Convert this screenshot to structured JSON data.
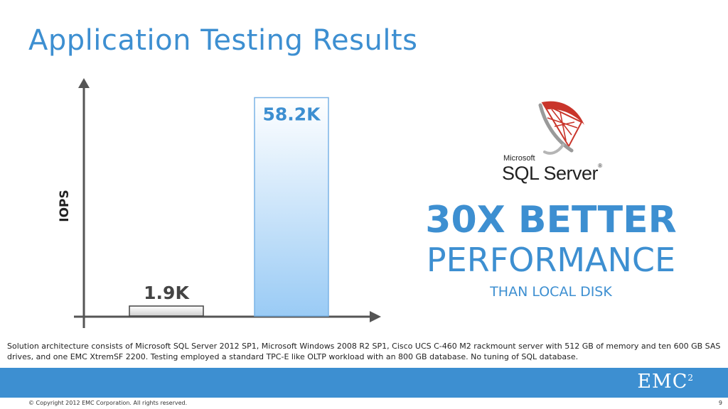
{
  "title": "Application Testing Results",
  "chart_data": {
    "type": "bar",
    "categories": [
      "",
      ""
    ],
    "values": [
      1.9,
      58.2
    ],
    "data_labels": [
      "1.9K",
      "58.2K"
    ],
    "ylabel": "IOPS",
    "xlabel": "",
    "ylim": [
      0,
      60
    ],
    "grid": false,
    "colors": [
      "#e6e6e6",
      "#a8d2f7"
    ]
  },
  "logo": {
    "brand_small": "Microsoft",
    "brand_main": "SQL Server",
    "trademark": "®",
    "icon": "sql-server-logo-icon"
  },
  "headline": {
    "line1": "30X BETTER",
    "line2": "PERFORMANCE",
    "line3": "THAN LOCAL DISK"
  },
  "footnote": "Solution architecture consists of Microsoft SQL Server 2012 SP1, Microsoft Windows 2008 R2 SP1, Cisco UCS C-460 M2 rackmount server with 512 GB of memory and ten 600 GB SAS drives, and one EMC XtremSF 2200.  Testing employed a standard TPC-E like OLTP workload with an 800 GB database.  No tuning of SQL database.",
  "footer": {
    "brand": "EMC",
    "brand_sup": "2",
    "copyright": "© Copyright 2012 EMC Corporation. All rights reserved.",
    "page": "9"
  },
  "colors": {
    "accent": "#3d8fd1",
    "bar_highlight": "#a8d2f7",
    "bar_baseline": "#e6e6e6"
  }
}
